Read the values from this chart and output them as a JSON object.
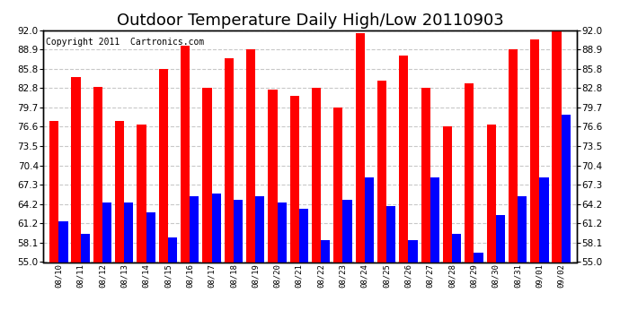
{
  "title": "Outdoor Temperature Daily High/Low 20110903",
  "copyright": "Copyright 2011  Cartronics.com",
  "dates": [
    "08/10",
    "08/11",
    "08/12",
    "08/13",
    "08/14",
    "08/15",
    "08/16",
    "08/17",
    "08/18",
    "08/19",
    "08/20",
    "08/21",
    "08/22",
    "08/23",
    "08/24",
    "08/25",
    "08/26",
    "08/27",
    "08/28",
    "08/29",
    "08/30",
    "08/31",
    "09/01",
    "09/02"
  ],
  "highs": [
    77.5,
    84.5,
    83.0,
    77.5,
    77.0,
    85.8,
    89.5,
    82.8,
    87.5,
    88.9,
    82.5,
    81.5,
    82.8,
    79.7,
    91.5,
    84.0,
    88.0,
    82.8,
    76.6,
    83.5,
    77.0,
    88.9,
    90.5,
    92.0
  ],
  "lows": [
    61.5,
    59.5,
    64.5,
    64.5,
    63.0,
    59.0,
    65.5,
    66.0,
    65.0,
    65.5,
    64.5,
    63.5,
    58.5,
    65.0,
    68.5,
    64.0,
    58.5,
    68.5,
    59.5,
    56.5,
    62.5,
    65.5,
    68.5,
    78.5
  ],
  "bar_color_high": "#ff0000",
  "bar_color_low": "#0000ff",
  "background_color": "#ffffff",
  "ylim": [
    55.0,
    92.0
  ],
  "yticks": [
    55.0,
    58.1,
    61.2,
    64.2,
    67.3,
    70.4,
    73.5,
    76.6,
    79.7,
    82.8,
    85.8,
    88.9,
    92.0
  ],
  "grid_color": "#c8c8c8",
  "title_fontsize": 13,
  "copyright_fontsize": 7,
  "bar_width": 0.42,
  "figwidth": 6.9,
  "figheight": 3.75,
  "dpi": 100
}
